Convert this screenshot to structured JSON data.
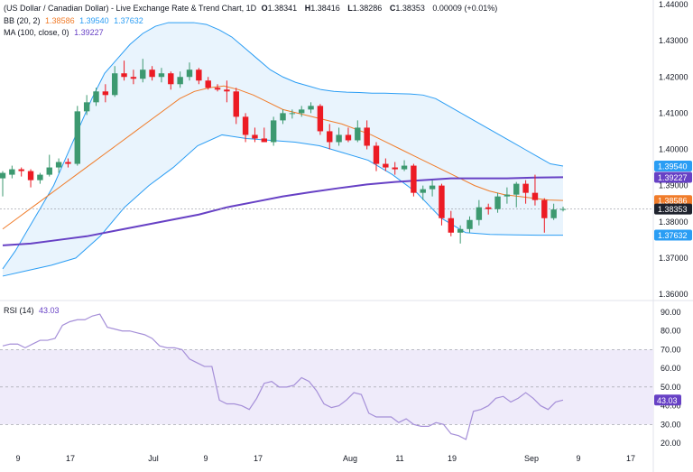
{
  "header": {
    "symbol": "(US Dollar / Canadian Dollar) - Live Exchange Rate & Trend Chart, 1D",
    "o_label": "O",
    "o": "1.38341",
    "h_label": "H",
    "h": "1.38416",
    "l_label": "L",
    "l": "1.38286",
    "c_label": "C",
    "c": "1.38353",
    "change": "0.00009 (+0.01%)",
    "bb_label": "BB (20, 2)",
    "bb_mid": "1.38586",
    "bb_upper": "1.39540",
    "bb_lower": "1.37632",
    "ma_label": "MA (100, close, 0)",
    "ma": "1.39227",
    "rsi_label": "RSI (14)",
    "rsi": "43.03"
  },
  "colors": {
    "up": "#3d9970",
    "down": "#ec1b24",
    "bb_band": "#2a9df4",
    "bb_mid": "#f07c2a",
    "bb_fill": "#e3f1fc",
    "ma": "#6741c5",
    "rsi": "#a58fd8",
    "rsi_fill": "#efebfa",
    "last_price": "#131722"
  },
  "chart_data": [
    {
      "type": "candlestick",
      "ylim": [
        1.36,
        1.44
      ],
      "y_ticks": [
        "1.44000",
        "1.43000",
        "1.42000",
        "1.41000",
        "1.40000",
        "1.39000",
        "1.38000",
        "1.37000",
        "1.36000"
      ],
      "x_tick_labels": [
        "9",
        "17",
        "Jul",
        "9",
        "17",
        "Aug",
        "11",
        "19",
        "Sep",
        "9",
        "17"
      ],
      "candles": [
        [
          1.392,
          1.394,
          1.387,
          1.3935
        ],
        [
          1.393,
          1.3955,
          1.392,
          1.3945
        ],
        [
          1.3945,
          1.395,
          1.3925,
          1.394
        ],
        [
          1.394,
          1.3945,
          1.3895,
          1.3915
        ],
        [
          1.3915,
          1.3935,
          1.3905,
          1.393
        ],
        [
          1.393,
          1.3985,
          1.3925,
          1.395
        ],
        [
          1.395,
          1.3975,
          1.3935,
          1.3965
        ],
        [
          1.3965,
          1.3975,
          1.395,
          1.396
        ],
        [
          1.396,
          1.412,
          1.3955,
          1.4105
        ],
        [
          1.4105,
          1.415,
          1.4095,
          1.413
        ],
        [
          1.413,
          1.417,
          1.412,
          1.416
        ],
        [
          1.416,
          1.418,
          1.413,
          1.415
        ],
        [
          1.415,
          1.423,
          1.4145,
          1.421
        ],
        [
          1.421,
          1.4245,
          1.419,
          1.42
        ],
        [
          1.42,
          1.422,
          1.418,
          1.4195
        ],
        [
          1.4195,
          1.425,
          1.4185,
          1.422
        ],
        [
          1.422,
          1.423,
          1.419,
          1.42
        ],
        [
          1.42,
          1.4225,
          1.4185,
          1.421
        ],
        [
          1.421,
          1.4215,
          1.4165,
          1.418
        ],
        [
          1.418,
          1.4215,
          1.417,
          1.42
        ],
        [
          1.42,
          1.424,
          1.419,
          1.422
        ],
        [
          1.422,
          1.4225,
          1.418,
          1.419
        ],
        [
          1.419,
          1.42,
          1.4165,
          1.417
        ],
        [
          1.417,
          1.418,
          1.416,
          1.4165
        ],
        [
          1.4165,
          1.419,
          1.413,
          1.416
        ],
        [
          1.416,
          1.417,
          1.407,
          1.409
        ],
        [
          1.409,
          1.41,
          1.402,
          1.404
        ],
        [
          1.404,
          1.406,
          1.402,
          1.403
        ],
        [
          1.403,
          1.406,
          1.402,
          1.402
        ],
        [
          1.402,
          1.409,
          1.401,
          1.408
        ],
        [
          1.408,
          1.411,
          1.407,
          1.41
        ],
        [
          1.41,
          1.411,
          1.4085,
          1.41
        ],
        [
          1.41,
          1.412,
          1.409,
          1.411
        ],
        [
          1.411,
          1.413,
          1.41,
          1.412
        ],
        [
          1.412,
          1.4125,
          1.404,
          1.405
        ],
        [
          1.405,
          1.407,
          1.4,
          1.402
        ],
        [
          1.402,
          1.406,
          1.401,
          1.404
        ],
        [
          1.404,
          1.406,
          1.402,
          1.4025
        ],
        [
          1.4025,
          1.408,
          1.402,
          1.406
        ],
        [
          1.406,
          1.408,
          1.4,
          1.401
        ],
        [
          1.401,
          1.402,
          1.394,
          1.396
        ],
        [
          1.396,
          1.3975,
          1.394,
          1.395
        ],
        [
          1.395,
          1.3965,
          1.393,
          1.3945
        ],
        [
          1.3945,
          1.397,
          1.394,
          1.3955
        ],
        [
          1.3955,
          1.396,
          1.387,
          1.388
        ],
        [
          1.388,
          1.39,
          1.386,
          1.389
        ],
        [
          1.389,
          1.3915,
          1.387,
          1.39
        ],
        [
          1.39,
          1.3905,
          1.379,
          1.381
        ],
        [
          1.381,
          1.383,
          1.376,
          1.377
        ],
        [
          1.377,
          1.379,
          1.374,
          1.378
        ],
        [
          1.378,
          1.3815,
          1.377,
          1.3805
        ],
        [
          1.3805,
          1.386,
          1.379,
          1.384
        ],
        [
          1.384,
          1.385,
          1.382,
          1.3835
        ],
        [
          1.3835,
          1.388,
          1.3825,
          1.387
        ],
        [
          1.387,
          1.3895,
          1.385,
          1.3875
        ],
        [
          1.3875,
          1.391,
          1.384,
          1.3905
        ],
        [
          1.3905,
          1.3915,
          1.385,
          1.388
        ],
        [
          1.388,
          1.393,
          1.3845,
          1.386
        ],
        [
          1.386,
          1.3865,
          1.377,
          1.381
        ],
        [
          1.381,
          1.385,
          1.3805,
          1.3834
        ],
        [
          1.38341,
          1.38416,
          1.38286,
          1.38353
        ]
      ],
      "bb_upper": [
        1.367,
        1.372,
        1.378,
        1.384,
        1.39,
        1.398,
        1.406,
        1.414,
        1.421,
        1.425,
        1.429,
        1.432,
        1.434,
        1.435,
        1.435,
        1.435,
        1.4345,
        1.433,
        1.431,
        1.428,
        1.425,
        1.422,
        1.42,
        1.4185,
        1.4175,
        1.4165,
        1.416,
        1.4158,
        1.4157,
        1.4155,
        1.4155,
        1.4154,
        1.4153,
        1.415,
        1.414,
        1.412,
        1.41,
        1.408,
        1.406,
        1.404,
        1.402,
        1.4,
        1.398,
        1.396,
        1.3954
      ],
      "bb_mid": [
        1.378,
        1.381,
        1.384,
        1.387,
        1.39,
        1.393,
        1.396,
        1.399,
        1.402,
        1.405,
        1.408,
        1.411,
        1.414,
        1.416,
        1.417,
        1.4175,
        1.4165,
        1.415,
        1.413,
        1.411,
        1.41,
        1.409,
        1.408,
        1.407,
        1.4055,
        1.404,
        1.402,
        1.4,
        1.398,
        1.396,
        1.394,
        1.392,
        1.39,
        1.3885,
        1.3875,
        1.387,
        1.3865,
        1.386,
        1.3859
      ],
      "bb_lower": [
        1.365,
        1.3665,
        1.368,
        1.37,
        1.376,
        1.384,
        1.39,
        1.395,
        1.401,
        1.404,
        1.403,
        1.4025,
        1.402,
        1.401,
        1.399,
        1.397,
        1.393,
        1.388,
        1.381,
        1.377,
        1.3765,
        1.3764,
        1.3763,
        1.3763
      ],
      "ma": [
        1.3735,
        1.374,
        1.375,
        1.376,
        1.3775,
        1.379,
        1.3805,
        1.382,
        1.384,
        1.3855,
        1.387,
        1.3882,
        1.3893,
        1.3903,
        1.391,
        1.3915,
        1.392,
        1.392,
        1.392,
        1.3922,
        1.3923
      ],
      "last_price": 1.38353,
      "price_labels": [
        {
          "name": "bb_upper",
          "value": 1.3954,
          "text": "1.39540"
        },
        {
          "name": "ma",
          "value": 1.39227,
          "text": "1.39227"
        },
        {
          "name": "bb_mid",
          "value": 1.38586,
          "text": "1.38586"
        },
        {
          "name": "close",
          "value": 1.38353,
          "text": "1.38353"
        },
        {
          "name": "bb_lower",
          "value": 1.37632,
          "text": "1.37632"
        }
      ]
    },
    {
      "type": "line",
      "series_label": "RSI (14)",
      "ylim": [
        15,
        95
      ],
      "y_ticks": [
        "90.00",
        "80.00",
        "70.00",
        "60.00",
        "50.00",
        "40.00",
        "30.00",
        "20.00"
      ],
      "band": [
        30,
        70
      ],
      "midline": 50,
      "values": [
        72,
        73,
        73,
        71,
        73,
        75,
        75,
        76,
        83,
        85,
        86,
        86,
        88,
        89,
        82,
        81,
        80,
        80,
        79,
        78,
        76,
        72,
        71,
        71,
        70,
        65,
        63,
        61,
        61,
        43,
        41,
        41,
        40,
        38,
        44,
        52,
        53,
        50,
        50,
        51,
        55,
        53,
        48,
        41,
        39,
        40,
        43,
        47,
        46,
        36,
        34,
        34,
        34,
        31,
        33,
        30,
        29,
        29,
        31,
        30,
        25,
        24,
        22,
        37,
        38,
        40,
        44,
        45,
        42,
        44,
        47,
        44,
        40,
        38,
        42,
        43.03
      ],
      "last_label": "43.03"
    }
  ]
}
